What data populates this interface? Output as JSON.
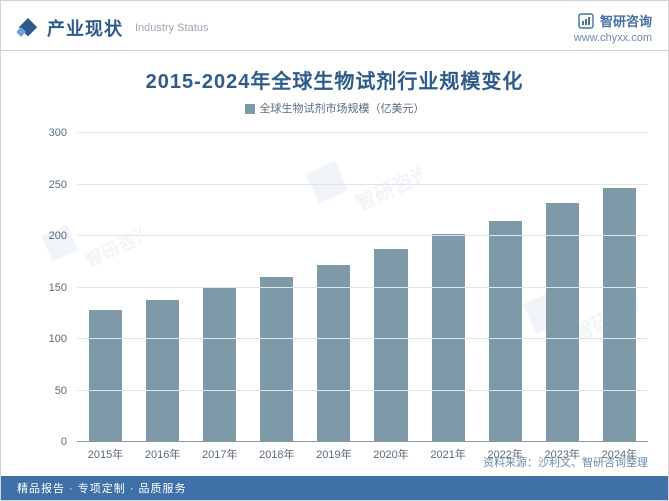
{
  "header": {
    "title_cn": "产业现状",
    "title_en": "Industry Status",
    "icon_color": "#2e5b8a",
    "brand_name": "智研咨询",
    "brand_url": "www.chyxx.com",
    "brand_color": "#4a6fa1"
  },
  "chart": {
    "type": "bar",
    "title": "2015-2024年全球生物试剂行业规模变化",
    "title_color": "#2e5b8a",
    "title_fontsize": 20,
    "legend_label": "全球生物试剂市场规模（亿美元）",
    "legend_swatch_color": "#7e9aa9",
    "categories": [
      "2015年",
      "2016年",
      "2017年",
      "2018年",
      "2019年",
      "2020年",
      "2021年",
      "2022年",
      "2023年",
      "2024年"
    ],
    "values": [
      128,
      138,
      150,
      160,
      172,
      187,
      202,
      215,
      232,
      247
    ],
    "bar_color": "#7e9aa9",
    "ylim": [
      0,
      300
    ],
    "ytick_step": 50,
    "yticks": [
      0,
      50,
      100,
      150,
      200,
      250,
      300
    ],
    "grid_color": "#dfe5ea",
    "baseline_color": "#8a97a4",
    "label_fontsize": 11,
    "label_color": "#5a6b7b",
    "background_color": "#ffffff",
    "bar_width_ratio": 0.58
  },
  "source": "资料来源：沙利文、智研咨询整理",
  "footer": "精品报告 · 专项定制 · 品质服务",
  "footer_bg": "#3f70a8",
  "watermark_text": "智研咨询"
}
